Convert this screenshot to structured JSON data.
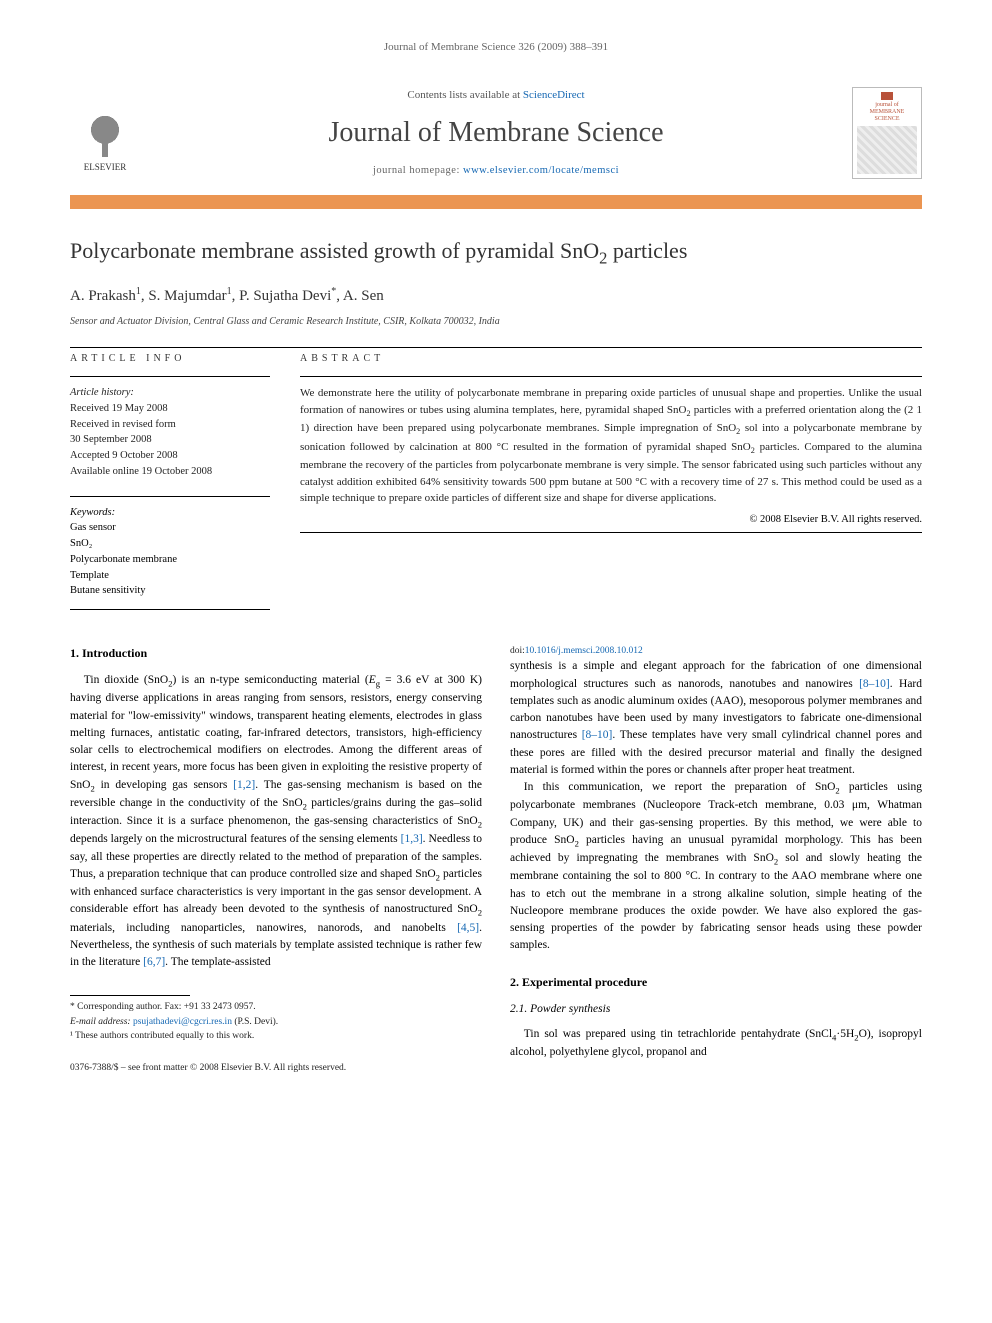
{
  "running_head": "Journal of Membrane Science 326 (2009) 388–391",
  "masthead": {
    "publisher": "ELSEVIER",
    "contents_prefix": "Contents lists available at ",
    "contents_link": "ScienceDirect",
    "journal_name": "Journal of Membrane Science",
    "homepage_prefix": "journal homepage: ",
    "homepage_url": "www.elsevier.com/locate/memsci",
    "cover_label_1": "journal of",
    "cover_label_2": "MEMBRANE",
    "cover_label_3": "SCIENCE"
  },
  "colors": {
    "orange_rule": "#eb9552",
    "link": "#1668b3",
    "text": "#000000",
    "muted": "#666666",
    "cover_accent": "#b8523a"
  },
  "article": {
    "title_html": "Polycarbonate membrane assisted growth of pyramidal SnO<sub>2</sub> particles",
    "authors_html": "A. Prakash<sup>1</sup>, S. Majumdar<sup>1</sup>, P. Sujatha Devi<sup>*</sup>, A. Sen",
    "affiliation": "Sensor and Actuator Division, Central Glass and Ceramic Research Institute, CSIR, Kolkata 700032, India"
  },
  "info": {
    "label": "ARTICLE INFO",
    "history_label": "Article history:",
    "history": [
      "Received 19 May 2008",
      "Received in revised form",
      "30 September 2008",
      "Accepted 9 October 2008",
      "Available online 19 October 2008"
    ],
    "keywords_label": "Keywords:",
    "keywords": [
      "Gas sensor",
      "SnO₂",
      "Polycarbonate membrane",
      "Template",
      "Butane sensitivity"
    ]
  },
  "abstract": {
    "label": "ABSTRACT",
    "text_html": "We demonstrate here the utility of polycarbonate membrane in preparing oxide particles of unusual shape and properties. Unlike the usual formation of nanowires or tubes using alumina templates, here, pyramidal shaped SnO<sub>2</sub> particles with a preferred orientation along the (2 1 1) direction have been prepared using polycarbonate membranes. Simple impregnation of SnO<sub>2</sub> sol into a polycarbonate membrane by sonication followed by calcination at 800 °C resulted in the formation of pyramidal shaped SnO<sub>2</sub> particles. Compared to the alumina membrane the recovery of the particles from polycarbonate membrane is very simple. The sensor fabricated using such particles without any catalyst addition exhibited 64% sensitivity towards 500 ppm butane at 500 °C with a recovery time of 27 s. This method could be used as a simple technique to prepare oxide particles of different size and shape for diverse applications.",
    "copyright": "© 2008 Elsevier B.V. All rights reserved."
  },
  "body": {
    "h_intro": "1. Introduction",
    "p1_html": "Tin dioxide (SnO<sub>2</sub>) is an n-type semiconducting material (<i>E</i><sub>g</sub> = 3.6 eV at 300 K) having diverse applications in areas ranging from sensors, resistors, energy conserving material for \"low-emissivity\" windows, transparent heating elements, electrodes in glass melting furnaces, antistatic coating, far-infrared detectors, transistors, high-efficiency solar cells to electrochemical modifiers on electrodes. Among the different areas of interest, in recent years, more focus has been given in exploiting the resistive property of SnO<sub>2</sub> in developing gas sensors <span class=\"ref\">[1,2]</span>. The gas-sensing mechanism is based on the reversible change in the conductivity of the SnO<sub>2</sub> particles/grains during the gas–solid interaction. Since it is a surface phenomenon, the gas-sensing characteristics of SnO<sub>2</sub> depends largely on the microstructural features of the sensing elements <span class=\"ref\">[1,3]</span>. Needless to say, all these properties are directly related to the method of preparation of the samples. Thus, a preparation technique that can produce controlled size and shaped SnO<sub>2</sub> particles with enhanced surface characteristics is very important in the gas sensor development. A considerable effort has already been devoted to the synthesis of nanostructured SnO<sub>2</sub> materials, including nanoparticles, nanowires, nanorods, and nanobelts <span class=\"ref\">[4,5]</span>. Nevertheless, the synthesis of such materials by template assisted technique is rather few in the literature <span class=\"ref\">[6,7]</span>. The template-assisted ",
    "p1b_html": "synthesis is a simple and elegant approach for the fabrication of one dimensional morphological structures such as nanorods, nanotubes and nanowires <span class=\"ref\">[8–10]</span>. Hard templates such as anodic aluminum oxides (AAO), mesoporous polymer membranes and carbon nanotubes have been used by many investigators to fabricate one-dimensional nanostructures <span class=\"ref\">[8–10]</span>. These templates have very small cylindrical channel pores and these pores are filled with the desired precursor material and finally the designed material is formed within the pores or channels after proper heat treatment.",
    "p2_html": "In this communication, we report the preparation of SnO<sub>2</sub> particles using polycarbonate membranes (Nucleopore Track-etch membrane, 0.03 μm, Whatman Company, UK) and their gas-sensing properties. By this method, we were able to produce SnO<sub>2</sub> particles having an unusual pyramidal morphology. This has been achieved by impregnating the membranes with SnO<sub>2</sub> sol and slowly heating the membrane containing the sol to 800 °C. In contrary to the AAO membrane where one has to etch out the membrane in a strong alkaline solution, simple heating of the Nucleopore membrane produces the oxide powder. We have also explored the gas-sensing properties of the powder by fabricating sensor heads using these powder samples.",
    "h_exp": "2. Experimental procedure",
    "h_powder": "2.1. Powder synthesis",
    "p3_html": "Tin sol was prepared using tin tetrachloride pentahydrate (SnCl<sub>4</sub>·5H<sub>2</sub>O), isopropyl alcohol, polyethylene glycol, propanol and"
  },
  "footnotes": {
    "corr": "* Corresponding author. Fax: +91 33 2473 0957.",
    "email_label": "E-mail address: ",
    "email": "psujathadevi@cgcri.res.in",
    "email_paren": " (P.S. Devi).",
    "note1": "¹ These authors contributed equally to this work."
  },
  "footer": {
    "line1": "0376-7388/$ – see front matter © 2008 Elsevier B.V. All rights reserved.",
    "doi_prefix": "doi:",
    "doi": "10.1016/j.memsci.2008.10.012"
  }
}
